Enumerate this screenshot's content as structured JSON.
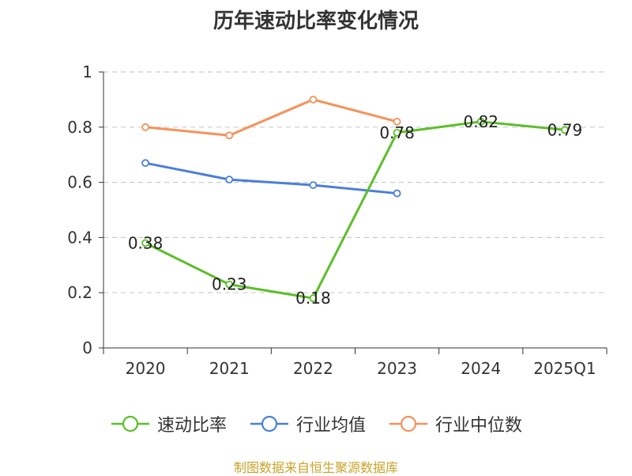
{
  "chart_data": {
    "type": "line",
    "title": "历年速动比率变化情况",
    "categories": [
      "2020",
      "2021",
      "2022",
      "2023",
      "2024",
      "2025Q1"
    ],
    "ylim": [
      0,
      1
    ],
    "yticks": [
      "0",
      "0.2",
      "0.4",
      "0.6",
      "0.8",
      "1"
    ],
    "grid": true,
    "legend_position": "bottom",
    "series": [
      {
        "name": "速动比率",
        "color": "#5cbf2a",
        "values": [
          0.38,
          0.23,
          0.18,
          0.78,
          0.82,
          0.79
        ],
        "labels": [
          "0.38",
          "0.23",
          "0.18",
          "0.78",
          "0.82",
          "0.79"
        ]
      },
      {
        "name": "行业均值",
        "color": "#4a7fdb",
        "values": [
          0.67,
          0.61,
          0.59,
          0.56,
          null,
          null
        ]
      },
      {
        "name": "行业中位数",
        "color": "#f5925a",
        "values": [
          0.8,
          0.77,
          0.9,
          0.82,
          null,
          null
        ]
      }
    ]
  },
  "source_note": "制图数据来自恒生聚源数据库"
}
